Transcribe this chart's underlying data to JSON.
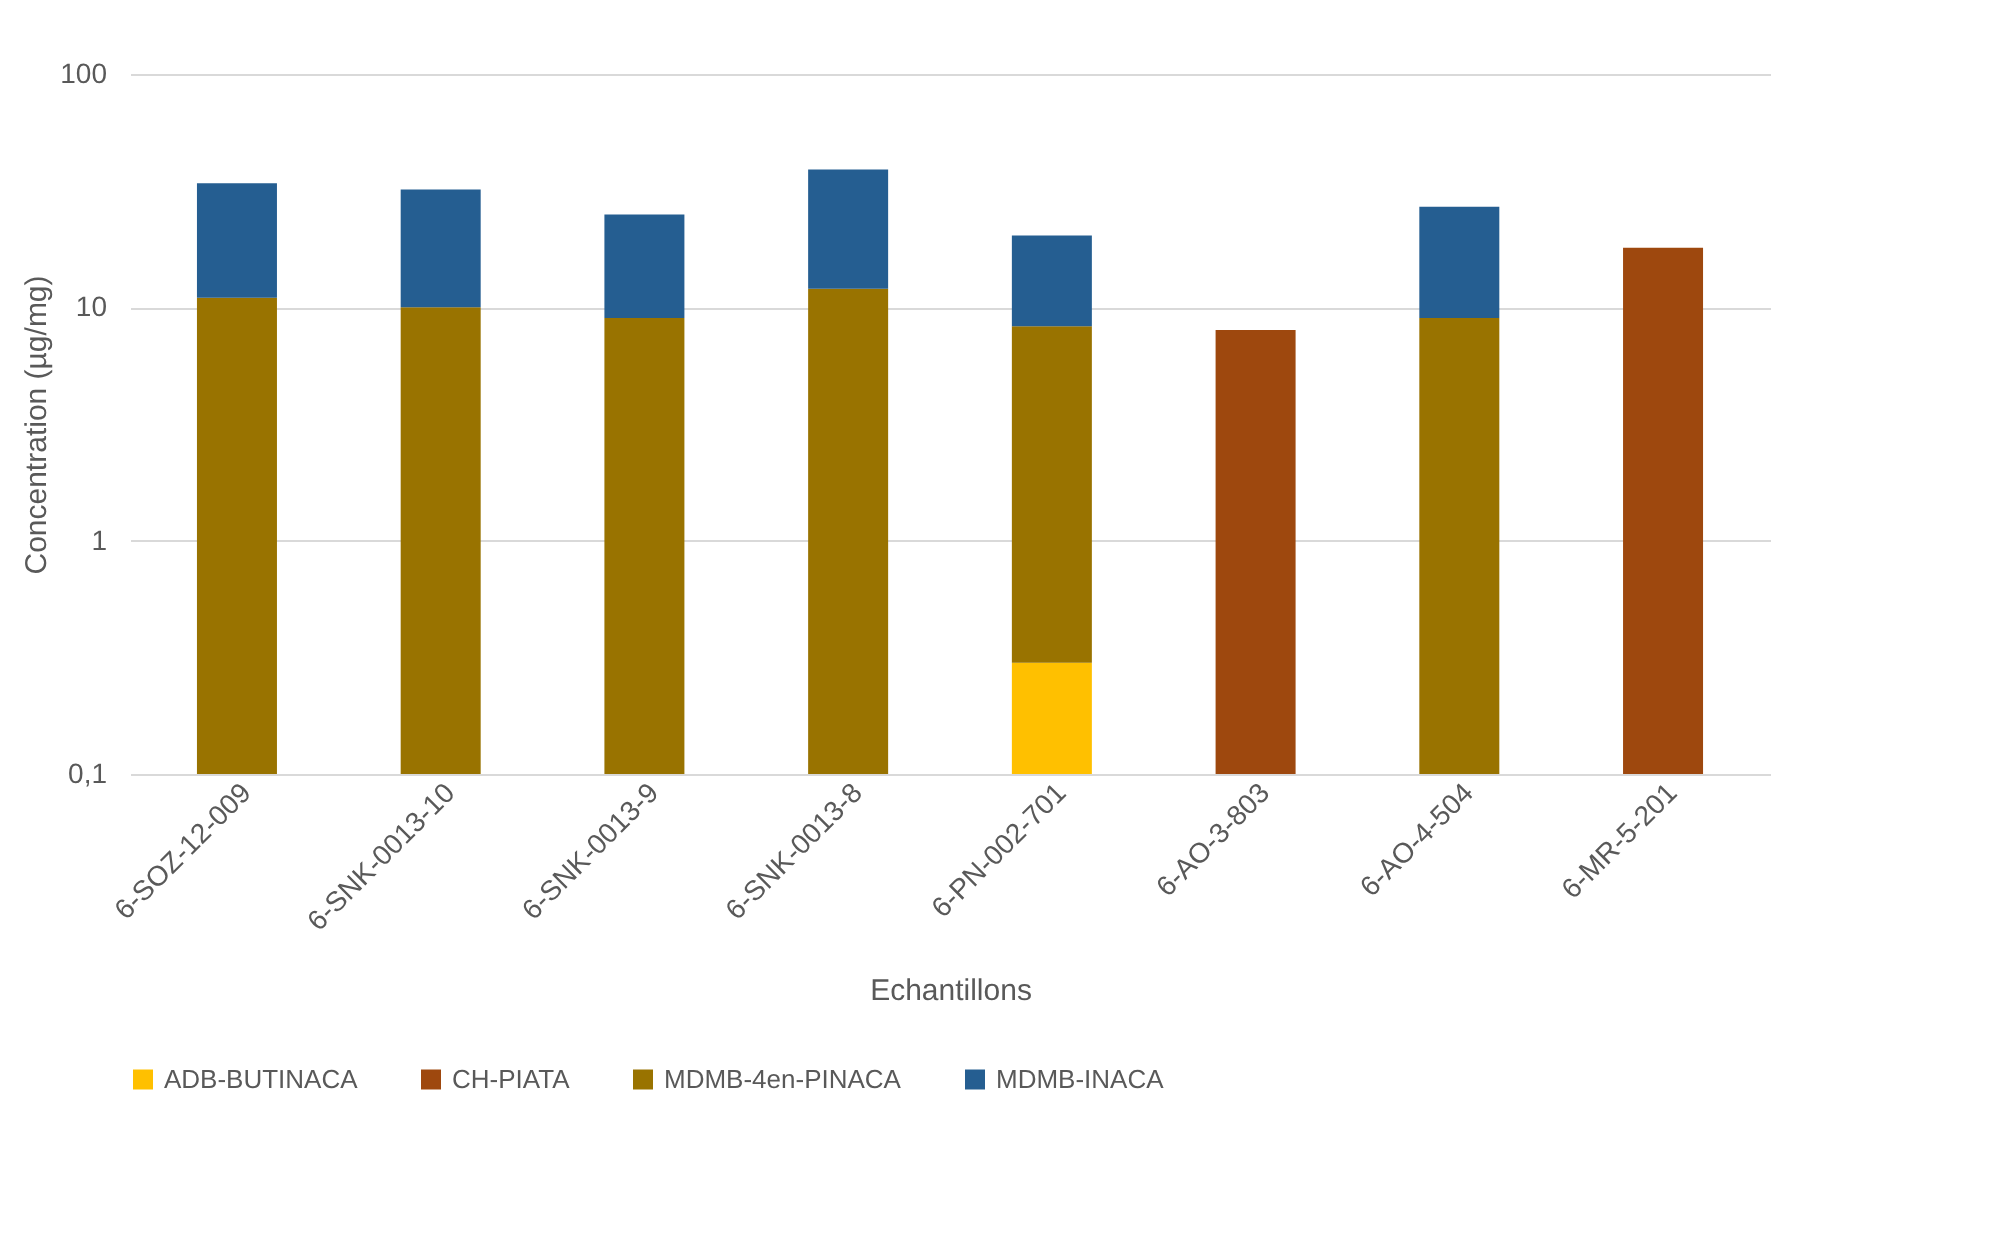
{
  "chart_data": {
    "type": "bar",
    "stacked": true,
    "log": "y",
    "xlabel": "Echantillons",
    "ylabel": "Concentration (µg/mg)",
    "categories": [
      "6-SOZ-12-009",
      "6-SNK-0013-10",
      "6-SNK-0013-9",
      "6-SNK-0013-8",
      "6-PN-002-701",
      "6-AO-3-803",
      "6-AO-4-504",
      "6-MR-5-201"
    ],
    "series": [
      {
        "name": "ADB-BUTINACA",
        "color": "#ffc000",
        "values": [
          null,
          null,
          null,
          null,
          0.3,
          null,
          null,
          null
        ]
      },
      {
        "name": "CH-PIATA",
        "color": "#9e480e",
        "values": [
          null,
          null,
          null,
          null,
          null,
          8,
          null,
          18
        ]
      },
      {
        "name": "MDMB-4en-PINACA",
        "color": "#997300",
        "values": [
          11,
          10,
          9,
          12,
          8,
          null,
          9,
          null
        ]
      },
      {
        "name": "MDMB-INACA",
        "color": "#255e91",
        "values": [
          23,
          22,
          16,
          27,
          12,
          null,
          18,
          null
        ]
      }
    ],
    "ylim": [
      0.1,
      100
    ],
    "yticks": [
      {
        "value": 0.1,
        "label": "0,1"
      },
      1,
      10,
      100
    ],
    "grid": "y",
    "legend": "bottom"
  }
}
